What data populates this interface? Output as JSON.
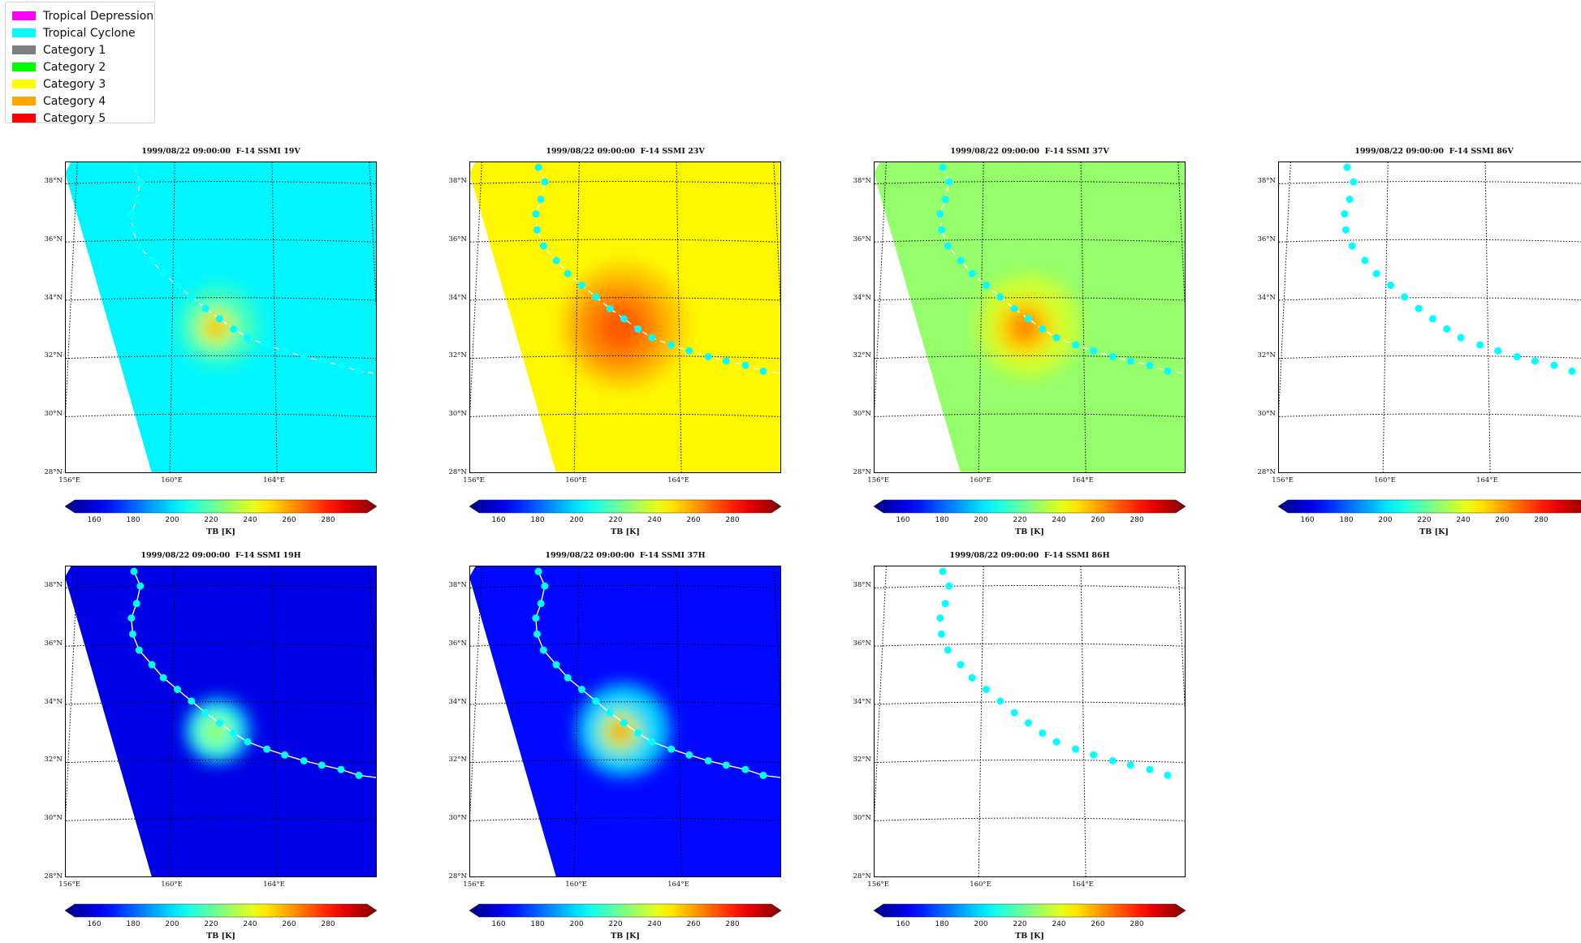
{
  "legend": {
    "items": [
      {
        "label": "Tropical Depression",
        "color": "#ff00ff"
      },
      {
        "label": "Tropical Cyclone",
        "color": "#00ffff"
      },
      {
        "label": "Category 1",
        "color": "#808080"
      },
      {
        "label": "Category 2",
        "color": "#00ff00"
      },
      {
        "label": "Category 3",
        "color": "#ffff00"
      },
      {
        "label": "Category 4",
        "color": "#ffa500"
      },
      {
        "label": "Category 5",
        "color": "#ff0000"
      }
    ]
  },
  "track": {
    "color": "#00ffff",
    "points": [
      [
        158.5,
        38.5
      ],
      [
        158.75,
        38.0
      ],
      [
        158.6,
        37.4
      ],
      [
        158.4,
        36.9
      ],
      [
        158.45,
        36.35
      ],
      [
        158.7,
        35.8
      ],
      [
        159.2,
        35.3
      ],
      [
        159.65,
        34.85
      ],
      [
        160.2,
        34.45
      ],
      [
        160.75,
        34.05
      ],
      [
        161.3,
        33.65
      ],
      [
        161.85,
        33.3
      ],
      [
        162.4,
        32.95
      ],
      [
        162.95,
        32.65
      ],
      [
        163.7,
        32.4
      ],
      [
        164.4,
        32.2
      ],
      [
        165.15,
        32.0
      ],
      [
        165.85,
        31.85
      ],
      [
        166.6,
        31.7
      ],
      [
        167.3,
        31.5
      ]
    ]
  },
  "colorbar": {
    "vmin": 150,
    "vmax": 300,
    "ticks": [
      "160",
      "180",
      "200",
      "220",
      "240",
      "260",
      "280"
    ],
    "label": "TB [K]",
    "colormap": "jet"
  },
  "map_extent": {
    "lon": [
      155.8,
      168.0
    ],
    "lat": [
      28.0,
      38.7
    ]
  },
  "lat_labels": [
    {
      "lat": 38,
      "text": "38°N"
    },
    {
      "lat": 36,
      "text": "36°N"
    },
    {
      "lat": 34,
      "text": "34°N"
    },
    {
      "lat": 32,
      "text": "32°N"
    },
    {
      "lat": 30,
      "text": "30°N"
    },
    {
      "lat": 28,
      "text": "28°N"
    }
  ],
  "lon_labels": [
    {
      "lon": 156,
      "text": "156°E"
    },
    {
      "lon": 160,
      "text": "160°E"
    },
    {
      "lon": 164,
      "text": "164°E"
    }
  ],
  "panels": [
    {
      "title": "1999/08/22 09:00:00  F-14 SSMI 19V",
      "base_tb": 205,
      "core_tb": 255,
      "core_radius_deg": 0.55,
      "warm_halo_tb": 217,
      "halo_radius_deg": 1.6,
      "has_swath": true,
      "track_style": "dashed-white"
    },
    {
      "title": "1999/08/22 09:00:00  F-14 SSMI 23V",
      "base_tb": 245,
      "core_tb": 268,
      "core_radius_deg": 1.2,
      "warm_halo_tb": 254,
      "halo_radius_deg": 2.4,
      "has_swath": true,
      "track_style": "dashed-white"
    },
    {
      "title": "1999/08/22 09:00:00  F-14 SSMI 37V",
      "base_tb": 228,
      "core_tb": 262,
      "core_radius_deg": 0.8,
      "warm_halo_tb": 238,
      "halo_radius_deg": 2.0,
      "has_swath": true,
      "track_style": "dashed-white"
    },
    {
      "title": "1999/08/22 09:00:00  F-14 SSMI 86V",
      "has_swath": false,
      "track_style": "dots-only"
    },
    {
      "title": "1999/08/22 09:00:00  F-14 SSMI 19H",
      "base_tb": 165,
      "core_tb": 228,
      "core_radius_deg": 0.8,
      "warm_halo_tb": 190,
      "halo_radius_deg": 1.3,
      "has_swath": true,
      "track_style": "solid-white"
    },
    {
      "title": "1999/08/22 09:00:00  F-14 SSMI 37H",
      "base_tb": 170,
      "core_tb": 260,
      "core_radius_deg": 0.6,
      "warm_halo_tb": 205,
      "halo_radius_deg": 1.8,
      "has_swath": true,
      "track_style": "solid-white"
    },
    {
      "title": "1999/08/22 09:00:00  F-14 SSMI 86H",
      "has_swath": false,
      "track_style": "dots-only"
    }
  ]
}
